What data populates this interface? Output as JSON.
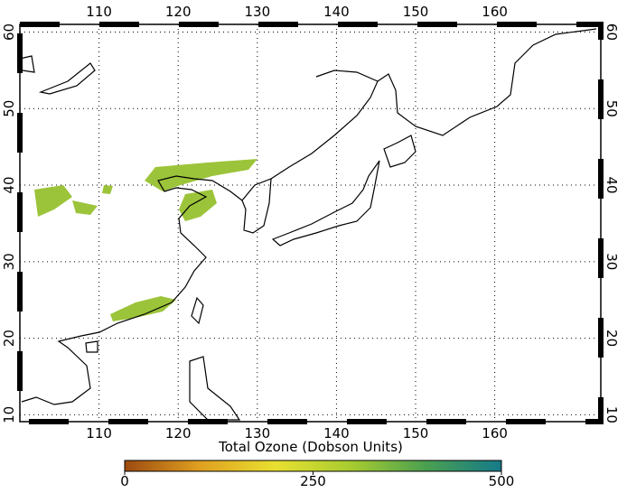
{
  "map": {
    "lon_range": [
      100,
      173.4
    ],
    "lat_range": [
      9.1,
      61
    ],
    "lon_ticks": [
      110,
      120,
      130,
      140,
      150,
      160
    ],
    "lat_ticks": [
      10,
      20,
      30,
      40,
      50,
      60
    ],
    "colorbar": {
      "title": "Total Ozone (Dobson Units)",
      "range": [
        0,
        500
      ],
      "ticks": [
        0,
        250,
        500
      ],
      "colors": [
        "#9c4a10",
        "#e0a020",
        "#e8e030",
        "#a8cc30",
        "#4aa050",
        "#157a8a"
      ]
    }
  }
}
